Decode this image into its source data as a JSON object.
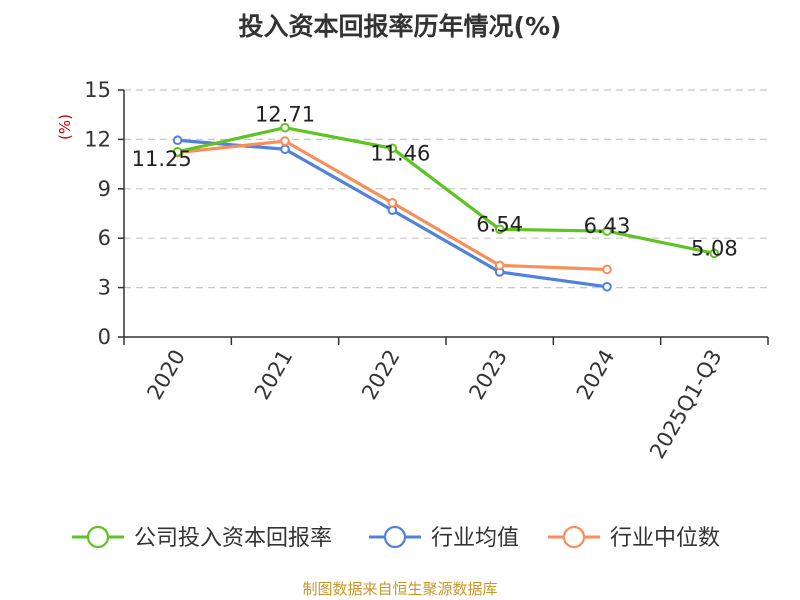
{
  "chart_data": {
    "type": "line",
    "title": "投入资本回报率历年情况(%)",
    "ylabel": "(%)",
    "ylim": [
      0,
      15
    ],
    "yticks": [
      "0",
      "3",
      "6",
      "9",
      "12",
      "15"
    ],
    "grid": true,
    "legend_position": "bottom",
    "categories": [
      "2020",
      "2021",
      "2022",
      "2023",
      "2024",
      "2025Q1-Q3"
    ],
    "series": [
      {
        "name": "公司投入资本回报率",
        "color": "#5ec323",
        "values": [
          11.25,
          12.71,
          11.46,
          6.54,
          6.43,
          5.08
        ],
        "show_labels": true
      },
      {
        "name": "行业均值",
        "color": "#4f81dd",
        "values": [
          11.95,
          11.4,
          7.7,
          3.95,
          3.05,
          null
        ],
        "show_labels": false
      },
      {
        "name": "行业中位数",
        "color": "#f98e5a",
        "values": [
          11.2,
          11.9,
          8.15,
          4.35,
          4.1,
          null
        ],
        "show_labels": false
      }
    ],
    "data_labels": [
      "11.25",
      "12.71",
      "11.46",
      "6.54",
      "6.43",
      "5.08"
    ]
  },
  "source": "制图数据来自恒生聚源数据库"
}
